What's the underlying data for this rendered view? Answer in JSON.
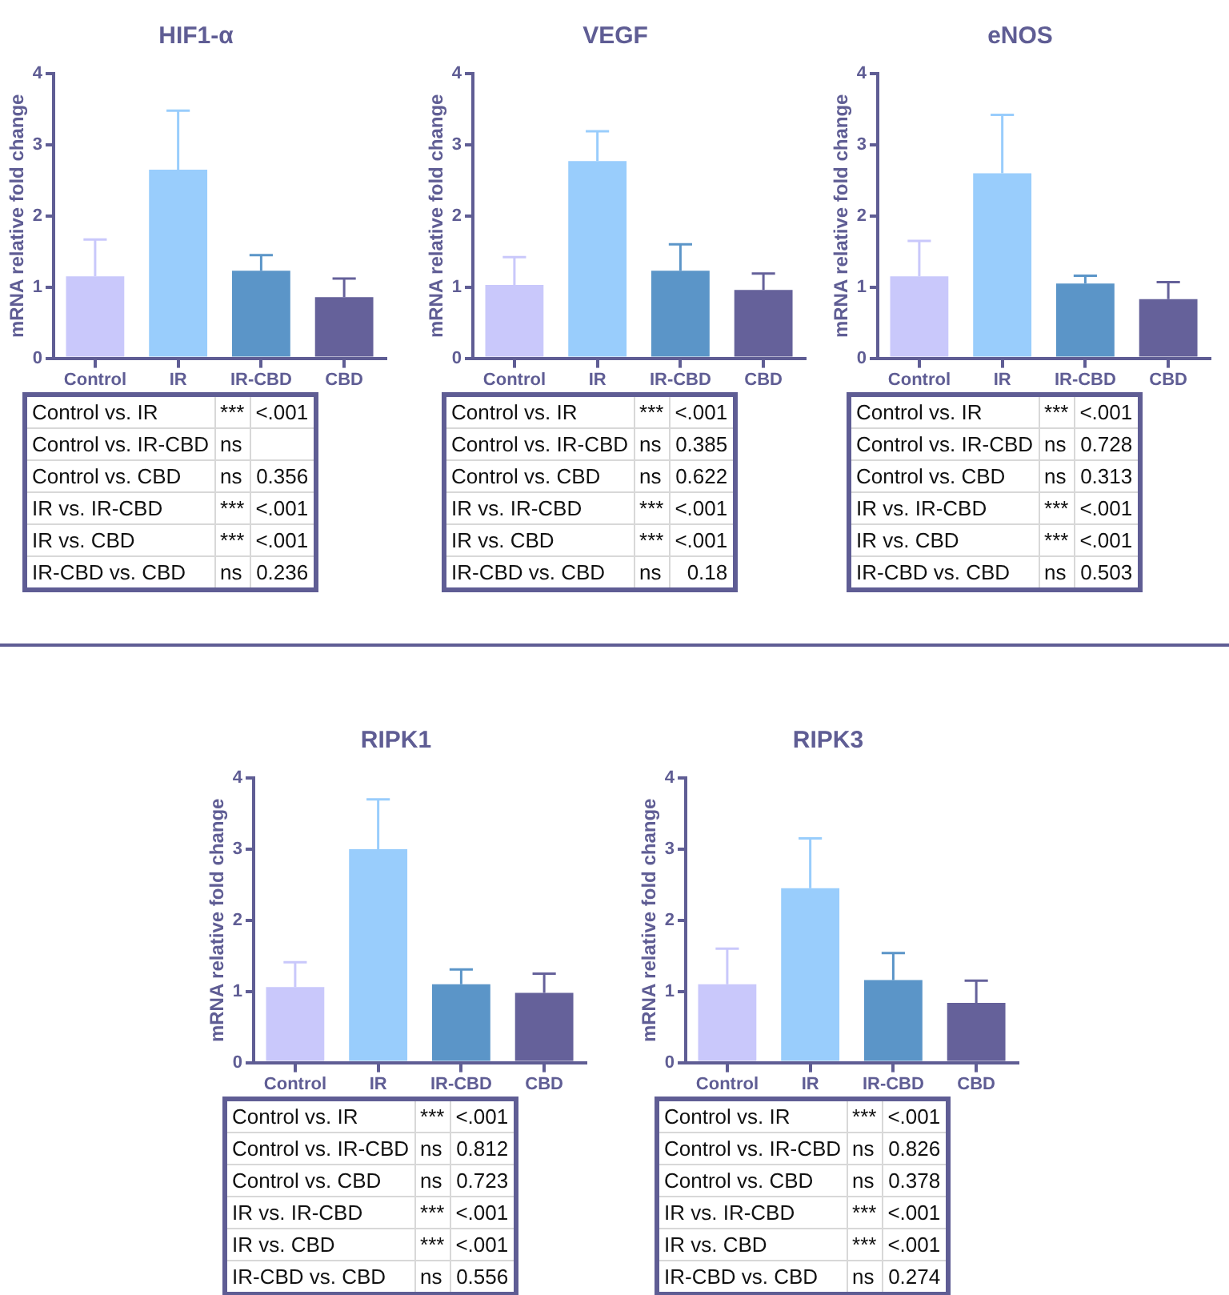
{
  "chart_data": [
    {
      "type": "bar",
      "title": "HIF1-α",
      "ylabel": "mRNA relative fold change",
      "categories": [
        "Control",
        "IR",
        "IR-CBD",
        "CBD"
      ],
      "values": [
        1.15,
        2.65,
        1.23,
        0.86
      ],
      "errors": [
        [
          1.15,
          1.67
        ],
        [
          2.65,
          3.48
        ],
        [
          1.23,
          1.45
        ],
        [
          0.86,
          1.12
        ]
      ],
      "colors": [
        "#c9c8fb",
        "#99cdfc",
        "#5b95c8",
        "#65619a"
      ],
      "ylim": [
        0,
        4
      ],
      "yticks": [
        0,
        1,
        2,
        3,
        4
      ],
      "grid": false,
      "legend": false,
      "annotations": [
        "Control vs. IR",
        "***",
        "<.001",
        "Control vs. IR-CBD",
        "ns",
        null,
        "Control vs. CBD",
        "ns",
        "0.356",
        "IR vs. IR-CBD",
        "***",
        "<.001",
        "IR vs. CBD",
        "***",
        "<.001",
        "IR-CBD vs. CBD",
        "ns",
        "0.236"
      ]
    },
    {
      "type": "bar",
      "title": "VEGF",
      "ylabel": "mRNA relative fold change",
      "categories": [
        "Control",
        "IR",
        "IR-CBD",
        "CBD"
      ],
      "values": [
        1.03,
        2.77,
        1.23,
        0.96
      ],
      "errors": [
        [
          1.03,
          1.42
        ],
        [
          2.77,
          3.19
        ],
        [
          1.23,
          1.6
        ],
        [
          0.96,
          1.19
        ]
      ],
      "colors": [
        "#c9c8fb",
        "#99cdfc",
        "#5b95c8",
        "#65619a"
      ],
      "ylim": [
        0,
        4
      ],
      "yticks": [
        0,
        1,
        2,
        3,
        4
      ],
      "grid": false,
      "legend": false,
      "annotations": [
        "Control vs. IR",
        "***",
        "<.001",
        "Control vs. IR-CBD",
        "ns",
        "0.385",
        "Control vs. CBD",
        "ns",
        "0.622",
        "IR vs. IR-CBD",
        "***",
        "<.001",
        "IR vs. CBD",
        "***",
        "<.001",
        "IR-CBD vs. CBD",
        "ns",
        "0.18"
      ]
    },
    {
      "type": "bar",
      "title": "eNOS",
      "ylabel": "mRNA relative fold change",
      "categories": [
        "Control",
        "IR",
        "IR-CBD",
        "CBD"
      ],
      "values": [
        1.15,
        2.6,
        1.05,
        0.83
      ],
      "errors": [
        [
          1.15,
          1.65
        ],
        [
          2.6,
          3.42
        ],
        [
          1.05,
          1.16
        ],
        [
          0.83,
          1.07
        ]
      ],
      "colors": [
        "#c9c8fb",
        "#99cdfc",
        "#5b95c8",
        "#65619a"
      ],
      "ylim": [
        0,
        4
      ],
      "yticks": [
        0,
        1,
        2,
        3,
        4
      ],
      "grid": false,
      "legend": false,
      "annotations": [
        "Control vs. IR",
        "***",
        "<.001",
        "Control vs. IR-CBD",
        "ns",
        "0.728",
        "Control vs. CBD",
        "ns",
        "0.313",
        "IR vs. IR-CBD",
        "***",
        "<.001",
        "IR vs. CBD",
        "***",
        "<.001",
        "IR-CBD vs. CBD",
        "ns",
        "0.503"
      ]
    },
    {
      "type": "bar",
      "title": "RIPK1",
      "ylabel": "mRNA relative fold change",
      "categories": [
        "Control",
        "IR",
        "IR-CBD",
        "CBD"
      ],
      "values": [
        1.06,
        3.0,
        1.1,
        0.98
      ],
      "errors": [
        [
          1.06,
          1.41
        ],
        [
          3.0,
          3.7
        ],
        [
          1.1,
          1.31
        ],
        [
          0.98,
          1.25
        ]
      ],
      "colors": [
        "#c9c8fb",
        "#99cdfc",
        "#5b95c8",
        "#65619a"
      ],
      "ylim": [
        0,
        4
      ],
      "yticks": [
        0,
        1,
        2,
        3,
        4
      ],
      "grid": false,
      "legend": false,
      "annotations": [
        "Control vs. IR",
        "***",
        "<.001",
        "Control vs. IR-CBD",
        "ns",
        "0.812",
        "Control vs. CBD",
        "ns",
        "0.723",
        "IR vs. IR-CBD",
        "***",
        "<.001",
        "IR vs. CBD",
        "***",
        "<.001",
        "IR-CBD vs. CBD",
        "ns",
        "0.556"
      ]
    },
    {
      "type": "bar",
      "title": "RIPK3",
      "ylabel": "mRNA relative fold change",
      "categories": [
        "Control",
        "IR",
        "IR-CBD",
        "CBD"
      ],
      "values": [
        1.1,
        2.45,
        1.16,
        0.84
      ],
      "errors": [
        [
          1.1,
          1.6
        ],
        [
          2.45,
          3.15
        ],
        [
          1.16,
          1.54
        ],
        [
          0.84,
          1.15
        ]
      ],
      "colors": [
        "#c9c8fb",
        "#99cdfc",
        "#5b95c8",
        "#65619a"
      ],
      "ylim": [
        0,
        4
      ],
      "yticks": [
        0,
        1,
        2,
        3,
        4
      ],
      "grid": false,
      "legend": false,
      "annotations": [
        "Control vs. IR",
        "***",
        "<.001",
        "Control vs. IR-CBD",
        "ns",
        "0.826",
        "Control vs. CBD",
        "ns",
        "0.378",
        "IR vs. IR-CBD",
        "***",
        "<.001",
        "IR vs. CBD",
        "***",
        "<.001",
        "IR-CBD vs. CBD",
        "ns",
        "0.274"
      ]
    }
  ]
}
